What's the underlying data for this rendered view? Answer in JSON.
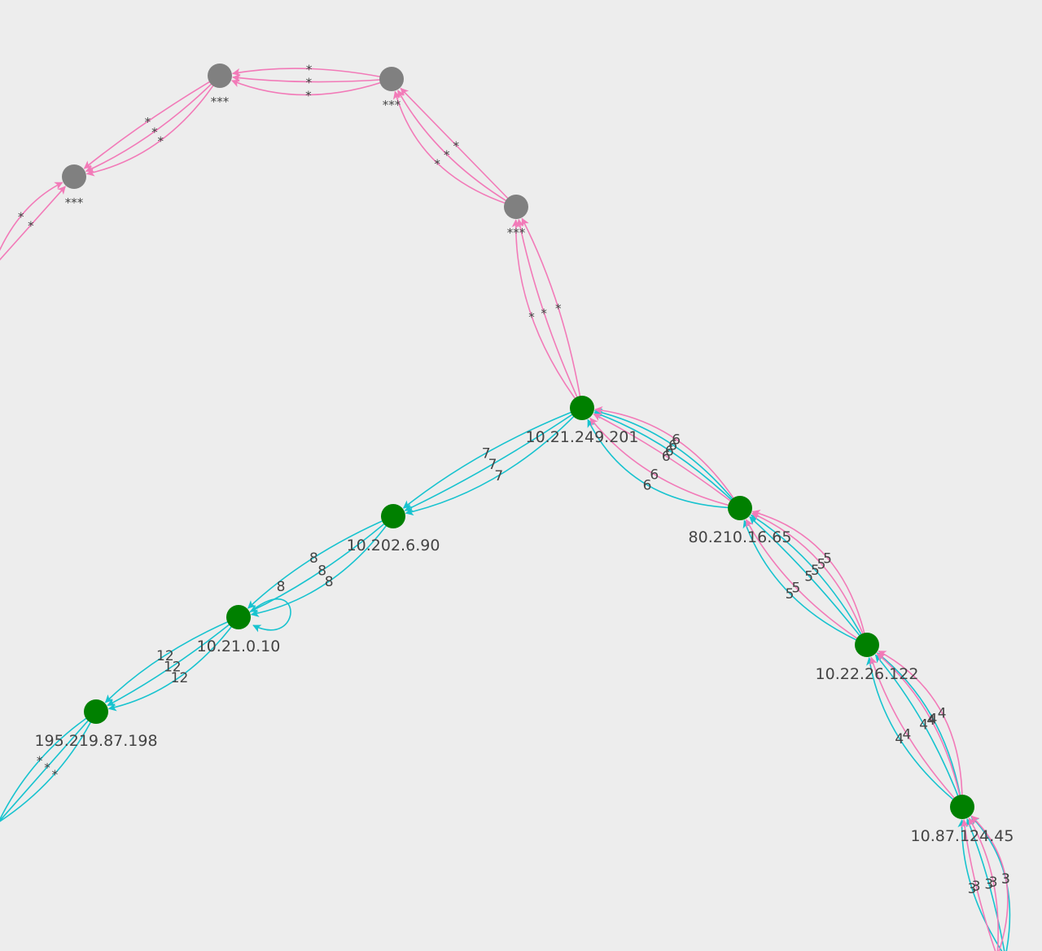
{
  "graph": {
    "colors": {
      "background": "#ededed",
      "node_responsive": "#008000",
      "node_hidden": "#808080",
      "edge_teal": "#17c3cf",
      "edge_pink": "#f27ab8"
    },
    "nodes": [
      {
        "id": "n_star_a",
        "label": "***",
        "status": "hidden"
      },
      {
        "id": "n_star_b",
        "label": "***",
        "status": "hidden"
      },
      {
        "id": "n_star_c",
        "label": "***",
        "status": "hidden"
      },
      {
        "id": "n_star_d",
        "label": "***",
        "status": "hidden"
      },
      {
        "id": "n_10_21_249_201",
        "label": "10.21.249.201",
        "status": "responsive"
      },
      {
        "id": "n_10_202_6_90",
        "label": "10.202.6.90",
        "status": "responsive"
      },
      {
        "id": "n_10_21_0_10",
        "label": "10.21.0.10",
        "status": "responsive"
      },
      {
        "id": "n_195_219_87_198",
        "label": "195.219.87.198",
        "status": "responsive"
      },
      {
        "id": "n_80_210_16_65",
        "label": "80.210.16.65",
        "status": "responsive"
      },
      {
        "id": "n_10_22_26_122",
        "label": "10.22.26.122",
        "status": "responsive"
      },
      {
        "id": "n_10_87_124_45",
        "label": "10.87.124.45",
        "status": "responsive"
      }
    ],
    "edges": [
      {
        "from": "n_star_d",
        "to": "n_star_c",
        "color": "pink",
        "labels": [
          "*",
          "*",
          "*"
        ]
      },
      {
        "from": "n_star_c",
        "to": "n_star_b",
        "color": "pink",
        "labels": [
          "*",
          "*",
          "*"
        ]
      },
      {
        "from": "n_star_b",
        "to": "n_star_a",
        "color": "pink",
        "labels": [
          "*",
          "*",
          "*"
        ]
      },
      {
        "from": "offscreen_left",
        "to": "n_star_a",
        "color": "pink",
        "labels": [
          "*",
          "*"
        ]
      },
      {
        "from": "n_10_21_249_201",
        "to": "n_star_d",
        "color": "pink",
        "labels": [
          "*",
          "*",
          "*"
        ]
      },
      {
        "from": "n_10_21_249_201",
        "to": "n_10_202_6_90",
        "color": "teal",
        "labels": [
          "7",
          "7",
          "7"
        ]
      },
      {
        "from": "n_10_202_6_90",
        "to": "n_10_21_0_10",
        "color": "teal",
        "labels": [
          "8",
          "8",
          "8",
          "8"
        ]
      },
      {
        "from": "n_10_21_0_10",
        "to": "n_195_219_87_198",
        "color": "teal",
        "labels": [
          "12",
          "12",
          "12"
        ]
      },
      {
        "from": "n_195_219_87_198",
        "to": "offscreen_left",
        "color": "teal",
        "labels": [
          "*",
          "*",
          "*"
        ]
      },
      {
        "from": "n_80_210_16_65",
        "to": "n_10_21_249_201",
        "color": "teal",
        "labels": [
          "6",
          "6",
          "6"
        ]
      },
      {
        "from": "n_80_210_16_65",
        "to": "n_10_21_249_201",
        "color": "pink",
        "labels": [
          "6",
          "6",
          "6"
        ]
      },
      {
        "from": "n_10_22_26_122",
        "to": "n_80_210_16_65",
        "color": "teal",
        "labels": [
          "5",
          "5",
          "5"
        ]
      },
      {
        "from": "n_10_22_26_122",
        "to": "n_80_210_16_65",
        "color": "pink",
        "labels": [
          "5",
          "5",
          "5"
        ]
      },
      {
        "from": "n_10_87_124_45",
        "to": "n_10_22_26_122",
        "color": "teal",
        "labels": [
          "4",
          "4",
          "4"
        ]
      },
      {
        "from": "n_10_87_124_45",
        "to": "n_10_22_26_122",
        "color": "pink",
        "labels": [
          "4",
          "4",
          "4"
        ]
      },
      {
        "from": "offscreen_bottom",
        "to": "n_10_87_124_45",
        "color": "teal",
        "labels": [
          "3",
          "3",
          "3"
        ]
      },
      {
        "from": "offscreen_bottom",
        "to": "n_10_87_124_45",
        "color": "pink",
        "labels": [
          "3",
          "3",
          "3"
        ]
      }
    ]
  }
}
